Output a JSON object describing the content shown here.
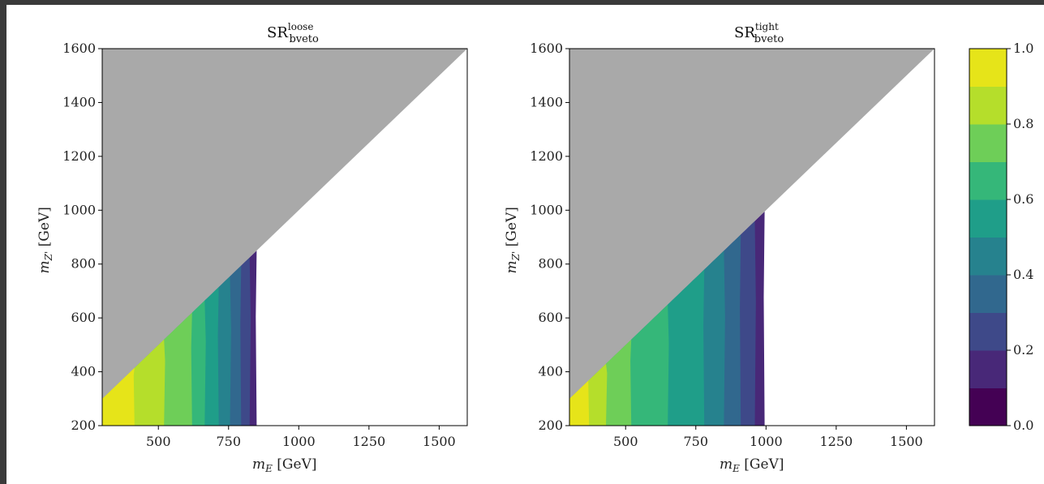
{
  "chart_data": [
    {
      "type": "heatmap",
      "title": "SR",
      "title_sup": "loose",
      "title_sub": "bveto",
      "xlabel_sym": "m",
      "xlabel_sub": "E",
      "xlabel_unit": " [GeV]",
      "ylabel_sym": "m",
      "ylabel_sub": "Z'",
      "ylabel_unit": " [GeV]",
      "xlim": [
        300,
        1600
      ],
      "ylim": [
        200,
        1600
      ],
      "xticks": [
        500,
        750,
        1000,
        1250,
        1500
      ],
      "yticks": [
        200,
        400,
        600,
        800,
        1000,
        1200,
        1400,
        1600
      ],
      "excluded_region": "m_Z' > m_E",
      "excluded_color": "#a9a9a9",
      "contour_edges_mE": [
        415,
        520,
        620,
        665,
        715,
        755,
        795,
        825,
        850
      ]
    },
    {
      "type": "heatmap",
      "title": "SR",
      "title_sup": "tight",
      "title_sub": "bveto",
      "xlabel_sym": "m",
      "xlabel_sub": "E",
      "xlabel_unit": " [GeV]",
      "ylabel_sym": "m",
      "ylabel_sub": "Z'",
      "ylabel_unit": " [GeV]",
      "xlim": [
        300,
        1600
      ],
      "ylim": [
        200,
        1600
      ],
      "xticks": [
        500,
        750,
        1000,
        1250,
        1500
      ],
      "yticks": [
        200,
        400,
        600,
        800,
        1000,
        1200,
        1400,
        1600
      ],
      "excluded_region": "m_Z' > m_E",
      "excluded_color": "#a9a9a9",
      "contour_edges_mE": [
        370,
        430,
        520,
        650,
        780,
        850,
        910,
        960,
        995
      ]
    }
  ],
  "colorbar": {
    "range": [
      0.0,
      1.0
    ],
    "ticks": [
      "0.0",
      "0.2",
      "0.4",
      "0.6",
      "0.8",
      "1.0"
    ],
    "levels": [
      "#440154",
      "#482878",
      "#3e4989",
      "#31688e",
      "#26828e",
      "#1f9e89",
      "#35b779",
      "#6ece58",
      "#b5de2b",
      "#e6e419"
    ]
  }
}
